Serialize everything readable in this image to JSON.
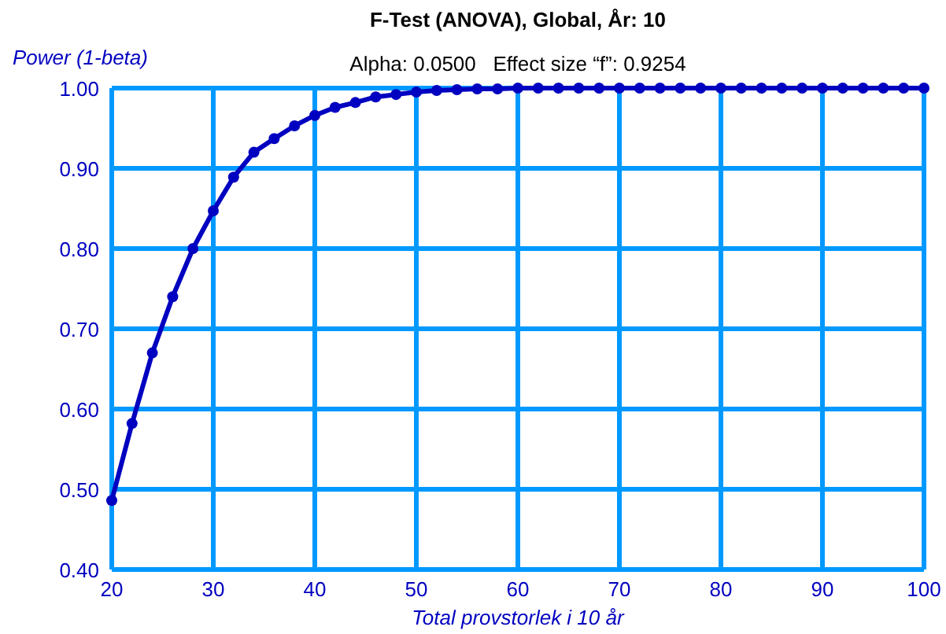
{
  "chart_data": {
    "type": "line",
    "title": "F-Test (ANOVA), Global, År: 10",
    "subtitle": "Alpha: 0.0500   Effect size “f”: 0.9254",
    "xlabel": "Total provstorlek i 10 år",
    "ylabel": "Power (1-beta)",
    "x": [
      20,
      22,
      24,
      26,
      28,
      30,
      32,
      34,
      36,
      38,
      40,
      42,
      44,
      46,
      48,
      50,
      52,
      54,
      56,
      58,
      60,
      62,
      64,
      66,
      68,
      70,
      72,
      74,
      76,
      78,
      80,
      82,
      84,
      86,
      88,
      90,
      92,
      94,
      96,
      98,
      100
    ],
    "series": [
      {
        "color": "#0000c0",
        "values": [
          0.486,
          0.582,
          0.67,
          0.74,
          0.8,
          0.847,
          0.889,
          0.92,
          0.937,
          0.953,
          0.966,
          0.976,
          0.982,
          0.989,
          0.992,
          0.995,
          0.997,
          0.998,
          0.999,
          0.999,
          1,
          1,
          1,
          1,
          1,
          1,
          1,
          1,
          1,
          1,
          1,
          1,
          1,
          1,
          1,
          1,
          1,
          1,
          1,
          1,
          1
        ]
      }
    ],
    "xlim": [
      20,
      100
    ],
    "xticks": [
      20,
      30,
      40,
      50,
      60,
      70,
      80,
      90,
      100
    ],
    "ylim": [
      0.4,
      1
    ],
    "yticks": [
      {
        "value": 0.4,
        "label": "0.40"
      },
      {
        "value": 0.5,
        "label": "0.50"
      },
      {
        "value": 0.6,
        "label": "0.60"
      },
      {
        "value": 0.7,
        "label": "0.70"
      },
      {
        "value": 0.8,
        "label": "0.80"
      },
      {
        "value": 0.9,
        "label": "0.90"
      },
      {
        "value": 1,
        "label": "1.00"
      }
    ],
    "grid": true,
    "marker": "circle",
    "line_style": "solid"
  }
}
